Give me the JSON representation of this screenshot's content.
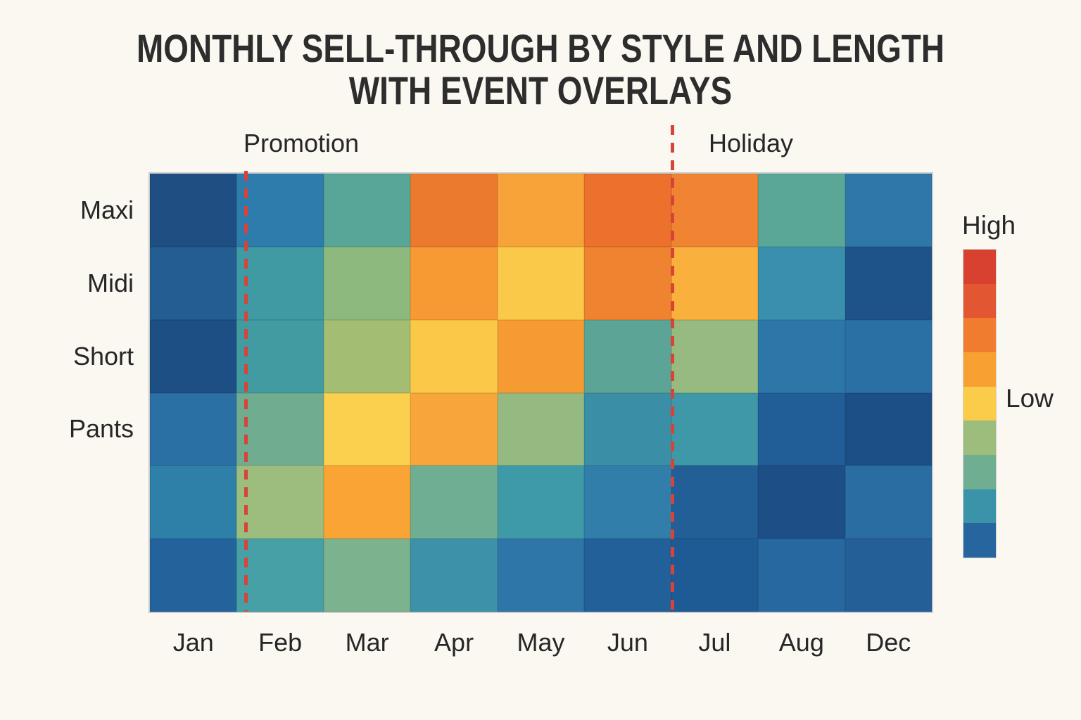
{
  "page": {
    "background": "#faf8f1",
    "text_color": "#2b2b2b",
    "event_line_color": "#d84338"
  },
  "title": {
    "line1": "MONTHLY SELL-THROUGH BY STYLE AND LENGTH",
    "line2": "WITH EVENT OVERLAYS"
  },
  "chart_data": {
    "type": "heatmap",
    "title": "MONTHLY SELL-THROUGH BY STYLE AND LENGTH WITH EVENT OVERLAYS",
    "x_labels": [
      "Jan",
      "Feb",
      "Mar",
      "Apr",
      "May",
      "Jun",
      "Jul",
      "Aug",
      "Dec"
    ],
    "y_labels": [
      "Maxi",
      "Midi",
      "Short",
      "Pants",
      "",
      ""
    ],
    "colors": [
      [
        "#1f4e82",
        "#2e7cab",
        "#58a698",
        "#ec7a2e",
        "#f8a339",
        "#eb712c",
        "#f08433",
        "#5aa797",
        "#2e77a9"
      ],
      [
        "#235d92",
        "#3f9aa4",
        "#8eb97e",
        "#f79a33",
        "#fbc94a",
        "#f0832f",
        "#f9b03c",
        "#3a8fae",
        "#1d5389"
      ],
      [
        "#1d4e84",
        "#429ba1",
        "#a3bd72",
        "#fbc848",
        "#f59b31",
        "#5ca495",
        "#96ba7f",
        "#2d77a8",
        "#2a70a5"
      ],
      [
        "#2b70a4",
        "#70ad90",
        "#fbd04e",
        "#f8a63c",
        "#95ba81",
        "#3a8fa6",
        "#3e98a7",
        "#215d97",
        "#1c4f86"
      ],
      [
        "#2e80a9",
        "#9cbd7e",
        "#f9a434",
        "#6fae92",
        "#3f9aa8",
        "#327eaa",
        "#235f97",
        "#1d4f86",
        "#2a6da3"
      ],
      [
        "#23629b",
        "#46a0a5",
        "#7cb28d",
        "#3d92a9",
        "#2e75a8",
        "#22609a",
        "#1e5a94",
        "#26689f",
        "#245f97"
      ]
    ],
    "values_est_0_to_1": [
      [
        0.04,
        0.33,
        0.52,
        0.9,
        0.76,
        0.92,
        0.86,
        0.53,
        0.34
      ],
      [
        0.16,
        0.44,
        0.61,
        0.78,
        0.68,
        0.84,
        0.73,
        0.4,
        0.08
      ],
      [
        0.05,
        0.43,
        0.64,
        0.7,
        0.8,
        0.54,
        0.62,
        0.32,
        0.3
      ],
      [
        0.3,
        0.56,
        0.71,
        0.77,
        0.61,
        0.42,
        0.46,
        0.15,
        0.05
      ],
      [
        0.36,
        0.65,
        0.79,
        0.56,
        0.46,
        0.35,
        0.17,
        0.05,
        0.26
      ],
      [
        0.18,
        0.46,
        0.58,
        0.43,
        0.31,
        0.17,
        0.13,
        0.22,
        0.16
      ]
    ],
    "events": [
      {
        "label": "Promotion",
        "line_at": "start of Feb",
        "line_style": "dashed",
        "line_color": "#d84338"
      },
      {
        "label": "Holiday",
        "line_at": "start of Jul",
        "line_style": "dashed",
        "line_color": "#d84338"
      }
    ],
    "colorbar": {
      "high_label": "High",
      "low_label": "Low",
      "segments_top_to_bottom": [
        "#d8402f",
        "#e25631",
        "#f07c30",
        "#f9a033",
        "#fbcc49",
        "#9cbd7b",
        "#6fae90",
        "#3b93a9",
        "#27659e"
      ]
    },
    "legend_position": "right",
    "grid": false
  }
}
